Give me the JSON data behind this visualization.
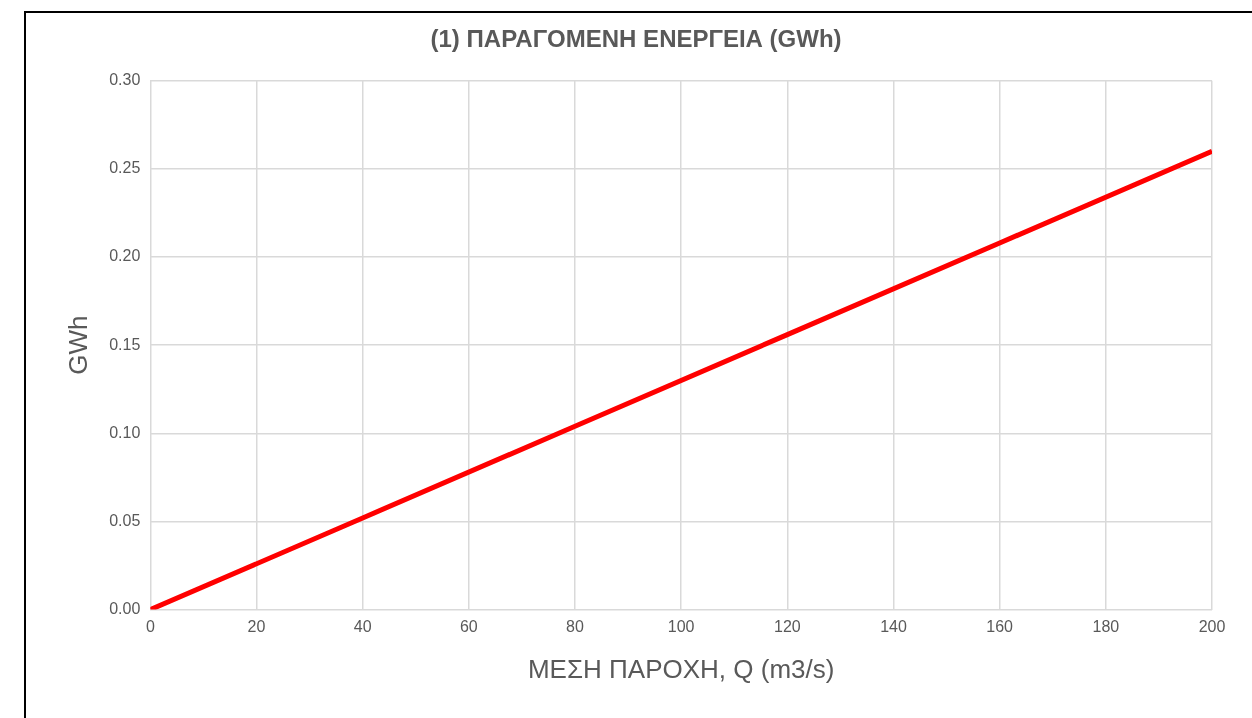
{
  "chart_data": {
    "type": "line",
    "title": "(1) ΠΑΡΑΓΟΜΕΝΗ ΕΝΕΡΓΕΙΑ (GWh)",
    "xlabel": "ΜΕΣΗ ΠΑΡΟΧΗ, Q (m3/s)",
    "ylabel": "GWh",
    "x": [
      0,
      40,
      80,
      120,
      160,
      200
    ],
    "series": [
      {
        "color": "#ff0000",
        "values": [
          0,
          0.052,
          0.104,
          0.156,
          0.208,
          0.26
        ]
      }
    ],
    "xlim": [
      0,
      200
    ],
    "xticks": [
      0,
      20,
      40,
      60,
      80,
      100,
      120,
      140,
      160,
      180,
      200
    ],
    "ylim": [
      0,
      0.3
    ],
    "yticks": [
      {
        "value": 0,
        "label": "0.00"
      },
      {
        "value": 0.05,
        "label": "0.05"
      },
      {
        "value": 0.1,
        "label": "0.10"
      },
      {
        "value": 0.15,
        "label": "0.15"
      },
      {
        "value": 0.2,
        "label": "0.20"
      },
      {
        "value": 0.25,
        "label": "0.25"
      },
      {
        "value": 0.3,
        "label": "0.30"
      }
    ],
    "grid": true,
    "legend": false,
    "marker": "none",
    "line_style": "solid"
  }
}
